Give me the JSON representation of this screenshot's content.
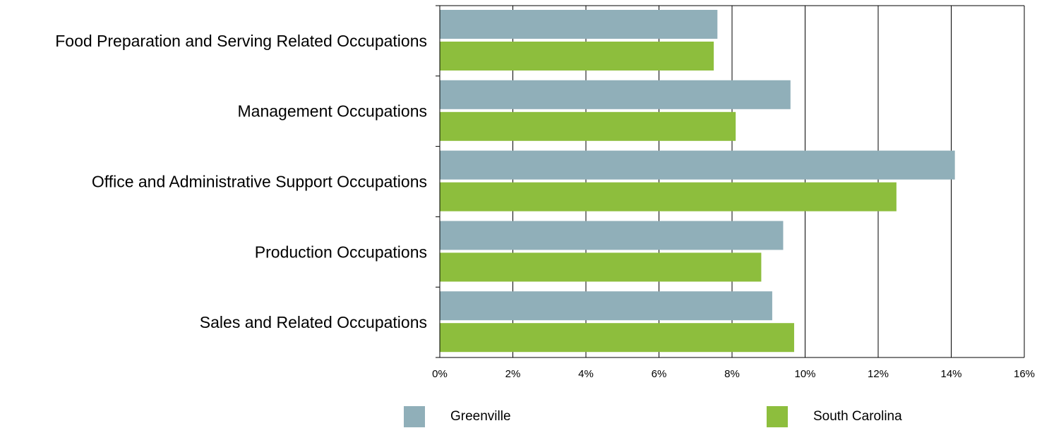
{
  "chart_data": {
    "type": "bar",
    "orientation": "horizontal",
    "categories": [
      "Food Preparation and Serving Related Occupations",
      "Management Occupations",
      "Office and Administrative Support Occupations",
      "Production Occupations",
      "Sales and Related Occupations"
    ],
    "series": [
      {
        "name": "Greenville",
        "color": "#90AFB9",
        "values": [
          7.6,
          9.6,
          14.1,
          9.4,
          9.1
        ]
      },
      {
        "name": "South Carolina",
        "color": "#8DBE3D",
        "values": [
          7.5,
          8.1,
          12.5,
          8.8,
          9.7
        ]
      }
    ],
    "xlim": [
      0,
      16
    ],
    "x_ticks": [
      "0%",
      "2%",
      "4%",
      "6%",
      "8%",
      "10%",
      "12%",
      "14%",
      "16%"
    ],
    "grid": "vertical",
    "legend_position": "bottom"
  }
}
